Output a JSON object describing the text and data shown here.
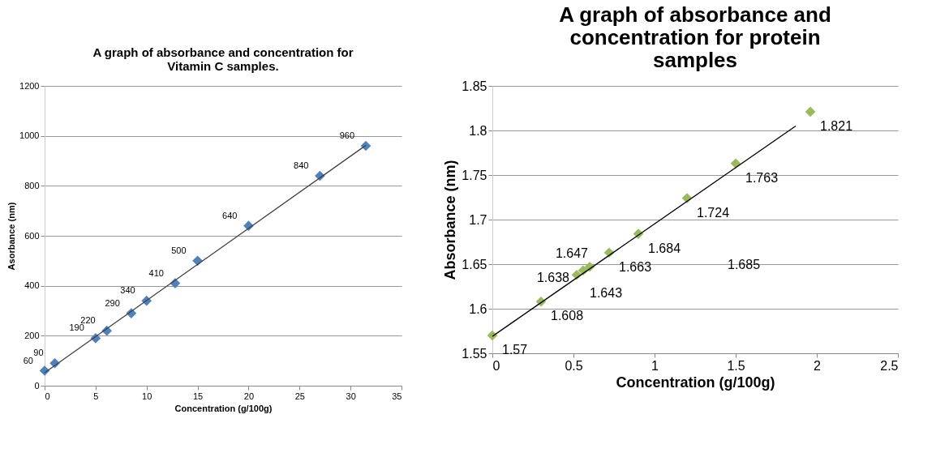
{
  "chart_data": [
    {
      "type": "scatter",
      "title": "A graph of absorbance and concentration for Vitamin C samples.",
      "xlabel": "Concentration (g/100g)",
      "ylabel": "Asorbance (nm)",
      "xlim": [
        0,
        35
      ],
      "xticks": [
        0,
        5,
        10,
        15,
        20,
        25,
        30,
        35
      ],
      "ylim": [
        0,
        1200
      ],
      "yticks": [
        0,
        200,
        400,
        600,
        800,
        1000,
        1200
      ],
      "grid": "y",
      "legend": false,
      "marker": "diamond",
      "series": [
        {
          "color": "#4f81bd",
          "x": [
            0,
            1,
            5,
            6.1,
            8.5,
            10,
            12.8,
            15,
            20,
            27,
            31.5
          ],
          "values": [
            60,
            90,
            190,
            220,
            290,
            340,
            410,
            500,
            640,
            840,
            960
          ],
          "value_labels": [
            "60",
            "90",
            "190",
            "220",
            "290",
            "340",
            "410",
            "500",
            "640",
            "840",
            "960"
          ]
        },
        {
          "type": "line",
          "marker": "none",
          "color": "#404040",
          "x": [
            0,
            31.5
          ],
          "values": [
            52,
            962
          ]
        }
      ]
    },
    {
      "type": "scatter",
      "title": "A graph of absorbance and concentration for protein samples",
      "xlabel": "Concentration (g/100g)",
      "ylabel": "Absorbance (nm)",
      "xlim": [
        0,
        2.5
      ],
      "xticks": [
        0,
        0.5,
        1,
        1.5,
        2,
        2.5
      ],
      "ylim": [
        1.55,
        1.85
      ],
      "yticks": [
        1.55,
        1.6,
        1.65,
        1.7,
        1.75,
        1.8,
        1.85
      ],
      "grid": "y",
      "legend": false,
      "marker": "diamond",
      "annotations": [
        "1.685"
      ],
      "series": [
        {
          "color": "#9bbb59",
          "x": [
            0,
            0.3,
            0.52,
            0.56,
            0.6,
            0.72,
            0.9,
            1.2,
            1.5,
            1.96
          ],
          "values": [
            1.57,
            1.608,
            1.638,
            1.643,
            1.647,
            1.663,
            1.684,
            1.724,
            1.763,
            1.821
          ],
          "value_labels": [
            "1.57",
            "1.608",
            "1.638",
            "1.643",
            "1.647",
            "1.663",
            "1.684",
            "1.724",
            "1.763",
            "1.821"
          ]
        },
        {
          "type": "line",
          "marker": "none",
          "color": "#000000",
          "x": [
            0,
            1.87
          ],
          "values": [
            1.569,
            1.805
          ]
        }
      ]
    }
  ]
}
